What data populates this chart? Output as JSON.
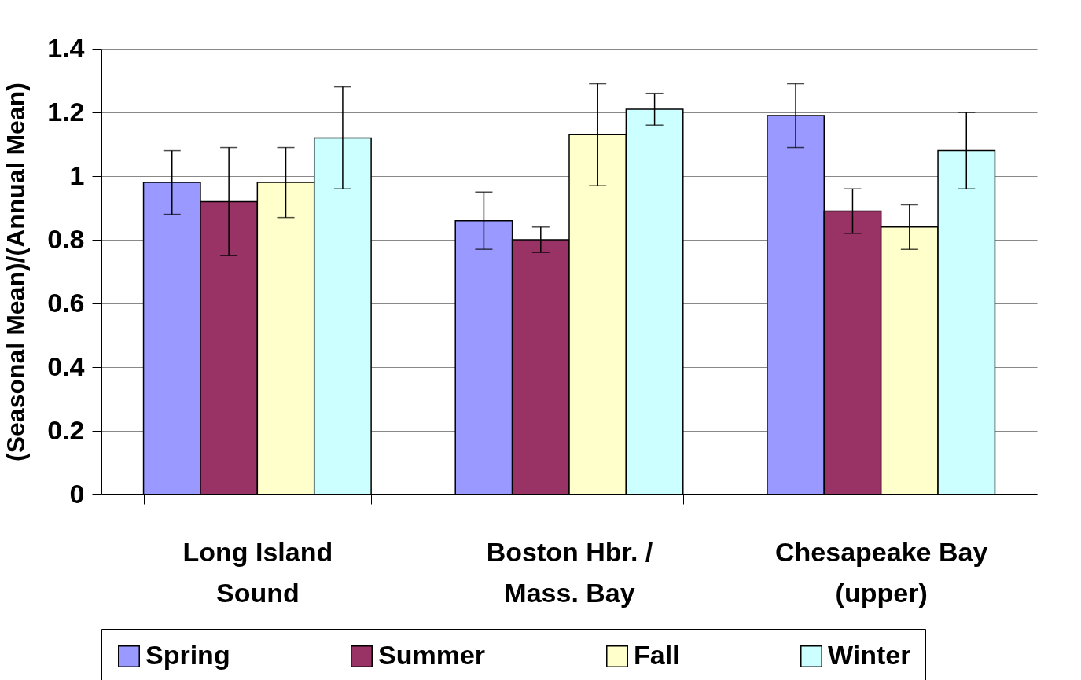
{
  "chart_data": {
    "type": "bar",
    "ylabel": "(Seasonal Mean)/(Annual Mean)",
    "categories": [
      "Long Island Sound",
      "Boston Hbr. / Mass. Bay",
      "Chesapeake Bay (upper)"
    ],
    "series": [
      {
        "name": "Spring",
        "color": "#9999ff",
        "values": [
          0.98,
          0.86,
          1.19
        ],
        "errors": [
          [
            0.88,
            1.08
          ],
          [
            0.77,
            0.95
          ],
          [
            1.09,
            1.29
          ]
        ]
      },
      {
        "name": "Summer",
        "color": "#993366",
        "values": [
          0.92,
          0.8,
          0.89
        ],
        "errors": [
          [
            0.75,
            1.09
          ],
          [
            0.76,
            0.84
          ],
          [
            0.82,
            0.96
          ]
        ]
      },
      {
        "name": "Fall",
        "color": "#ffffcc",
        "values": [
          0.98,
          1.13,
          0.84
        ],
        "errors": [
          [
            0.87,
            1.09
          ],
          [
            0.97,
            1.29
          ],
          [
            0.77,
            0.91
          ]
        ]
      },
      {
        "name": "Winter",
        "color": "#ccffff",
        "values": [
          1.12,
          1.21,
          1.08
        ],
        "errors": [
          [
            0.96,
            1.28
          ],
          [
            1.16,
            1.26
          ],
          [
            0.96,
            1.2
          ]
        ]
      }
    ],
    "ylim": [
      0,
      1.4
    ],
    "yticks": [
      0,
      0.2,
      0.4,
      0.6,
      0.8,
      1,
      1.2,
      1.4
    ],
    "grid": "y",
    "legend": "bottom"
  }
}
